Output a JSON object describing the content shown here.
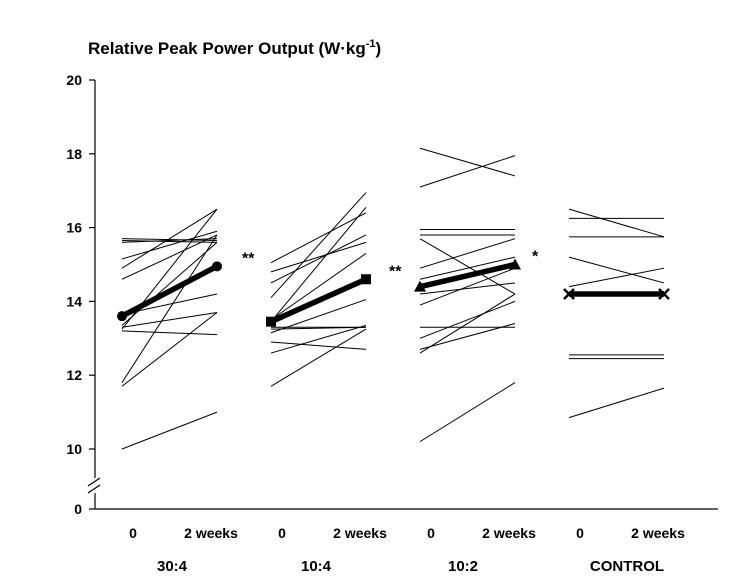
{
  "chart_data": {
    "type": "line",
    "title": "Relative Peak Power Output (W·kg",
    "title_sup": "-1",
    "title_close": ")",
    "ylabel": "Relative Peak Power Output (W·kg-1)",
    "ylim": [
      10,
      20
    ],
    "y_ticks": [
      "20",
      "18",
      "16",
      "14",
      "12",
      "10"
    ],
    "y_break_label": "0",
    "axis_break": true,
    "time_points": [
      "0",
      "2 weeks"
    ],
    "groups": [
      {
        "name": "30:4",
        "marker": "circle",
        "significance": "**",
        "mean": [
          13.6,
          14.95
        ],
        "individuals": [
          [
            15.7,
            15.65
          ],
          [
            15.65,
            15.6
          ],
          [
            15.6,
            15.7
          ],
          [
            15.15,
            15.9
          ],
          [
            14.9,
            16.5
          ],
          [
            14.6,
            15.8
          ],
          [
            13.65,
            14.2
          ],
          [
            13.35,
            15.6
          ],
          [
            13.3,
            13.7
          ],
          [
            13.25,
            16.5
          ],
          [
            13.2,
            13.1
          ],
          [
            11.8,
            15.8
          ],
          [
            11.7,
            13.7
          ],
          [
            10.0,
            11.0
          ]
        ]
      },
      {
        "name": "10:4",
        "marker": "square",
        "significance": "**",
        "mean": [
          13.45,
          14.6
        ],
        "individuals": [
          [
            15.05,
            16.4
          ],
          [
            14.8,
            15.6
          ],
          [
            14.5,
            15.8
          ],
          [
            14.1,
            16.95
          ],
          [
            13.5,
            15.3
          ],
          [
            13.45,
            16.55
          ],
          [
            13.3,
            13.3
          ],
          [
            13.25,
            13.3
          ],
          [
            13.15,
            14.05
          ],
          [
            12.9,
            12.7
          ],
          [
            12.6,
            13.35
          ],
          [
            11.7,
            13.25
          ]
        ]
      },
      {
        "name": "10:2",
        "marker": "triangle",
        "significance": "*",
        "mean": [
          14.4,
          15.0
        ],
        "individuals": [
          [
            18.15,
            17.4
          ],
          [
            17.1,
            17.95
          ],
          [
            15.95,
            15.95
          ],
          [
            15.8,
            15.8
          ],
          [
            15.7,
            14.2
          ],
          [
            14.9,
            15.7
          ],
          [
            14.6,
            15.2
          ],
          [
            14.2,
            14.5
          ],
          [
            13.9,
            14.9
          ],
          [
            13.3,
            13.3
          ],
          [
            13.0,
            14.0
          ],
          [
            12.7,
            13.4
          ],
          [
            12.6,
            14.2
          ],
          [
            10.2,
            11.8
          ]
        ]
      },
      {
        "name": "CONTROL",
        "marker": "x",
        "significance": "",
        "mean": [
          14.2,
          14.2
        ],
        "individuals": [
          [
            16.5,
            15.75
          ],
          [
            16.25,
            16.25
          ],
          [
            15.75,
            15.75
          ],
          [
            15.2,
            14.5
          ],
          [
            14.4,
            14.9
          ],
          [
            12.55,
            12.55
          ],
          [
            12.45,
            12.45
          ],
          [
            10.85,
            11.65
          ]
        ]
      }
    ]
  }
}
